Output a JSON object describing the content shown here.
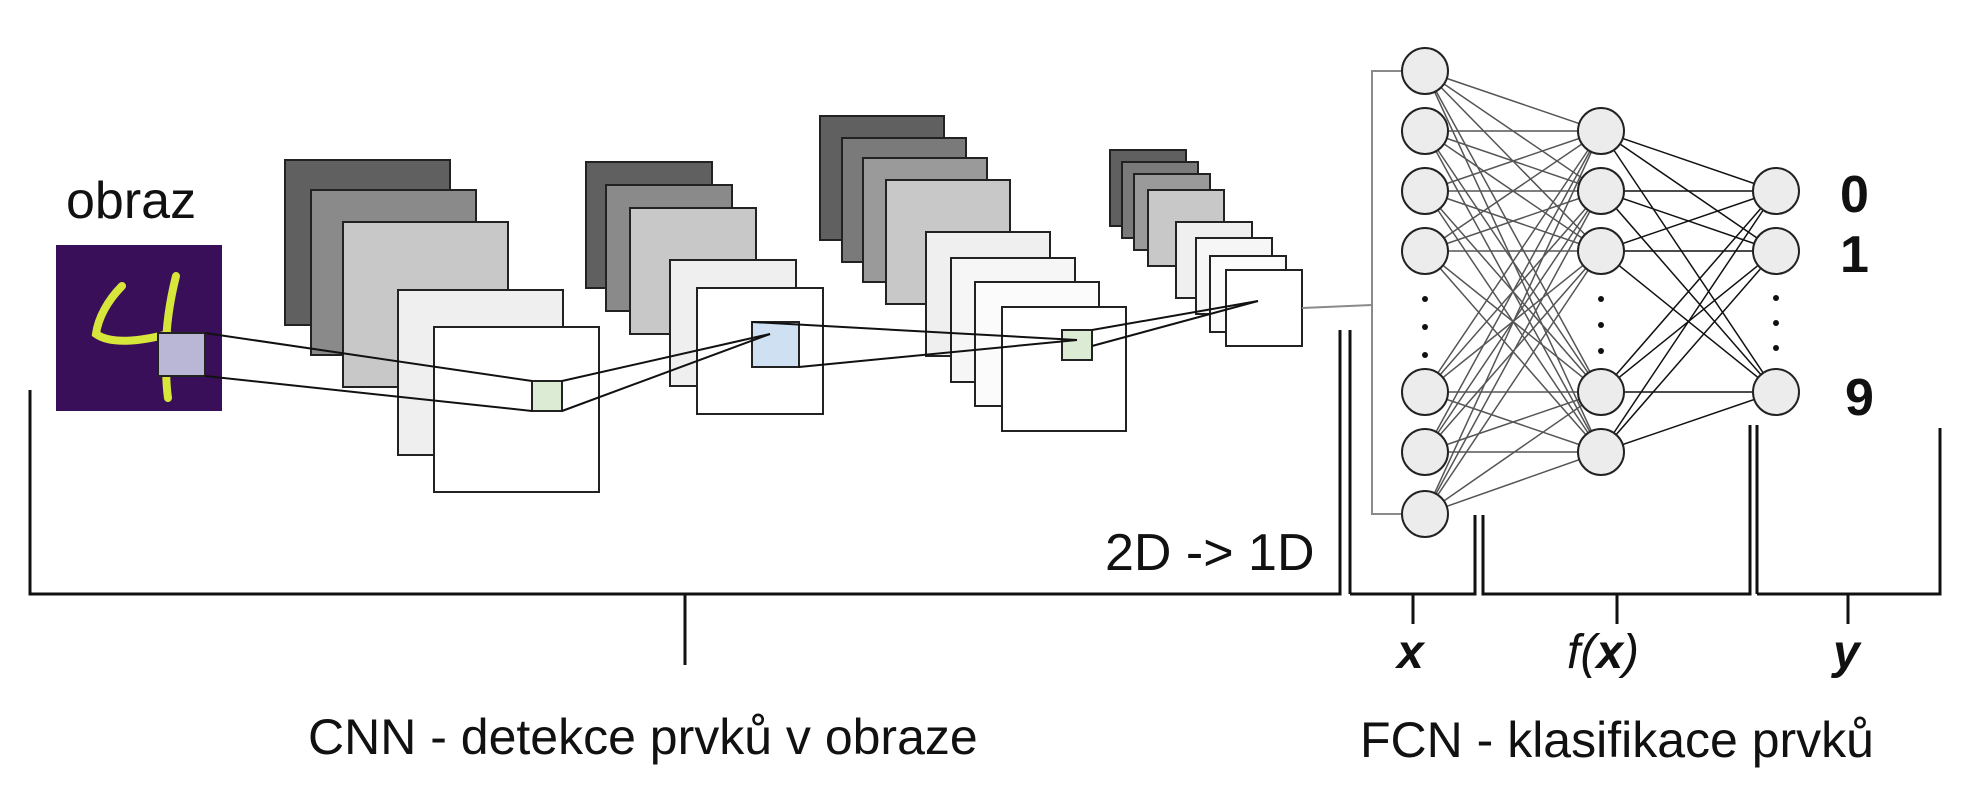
{
  "labels": {
    "input_label": "obraz",
    "flatten_label": "2D -> 1D",
    "cnn_caption": "CNN - detekce prvků v obraze",
    "fcn_caption": "FCN - klasifikace prvků",
    "x_label": "x",
    "fx_prefix": "f(",
    "fx_var": "x",
    "fx_suffix": ")",
    "y_label": "y"
  },
  "outputs": [
    "0",
    "1",
    "9"
  ],
  "ellipsis": ".",
  "colors": {
    "input_bg": "#3a0f5a",
    "digit_stroke": "#d7e63a",
    "kernel_green": "#dcecd4",
    "kernel_blue": "#cfe0f3",
    "kernel_lilac": "#b9b6d6",
    "map_dark": "#606060",
    "map_mid": "#8a8a8a",
    "map_light": "#c8c8c8",
    "map_lighter": "#efefef",
    "map_white": "#ffffff"
  }
}
